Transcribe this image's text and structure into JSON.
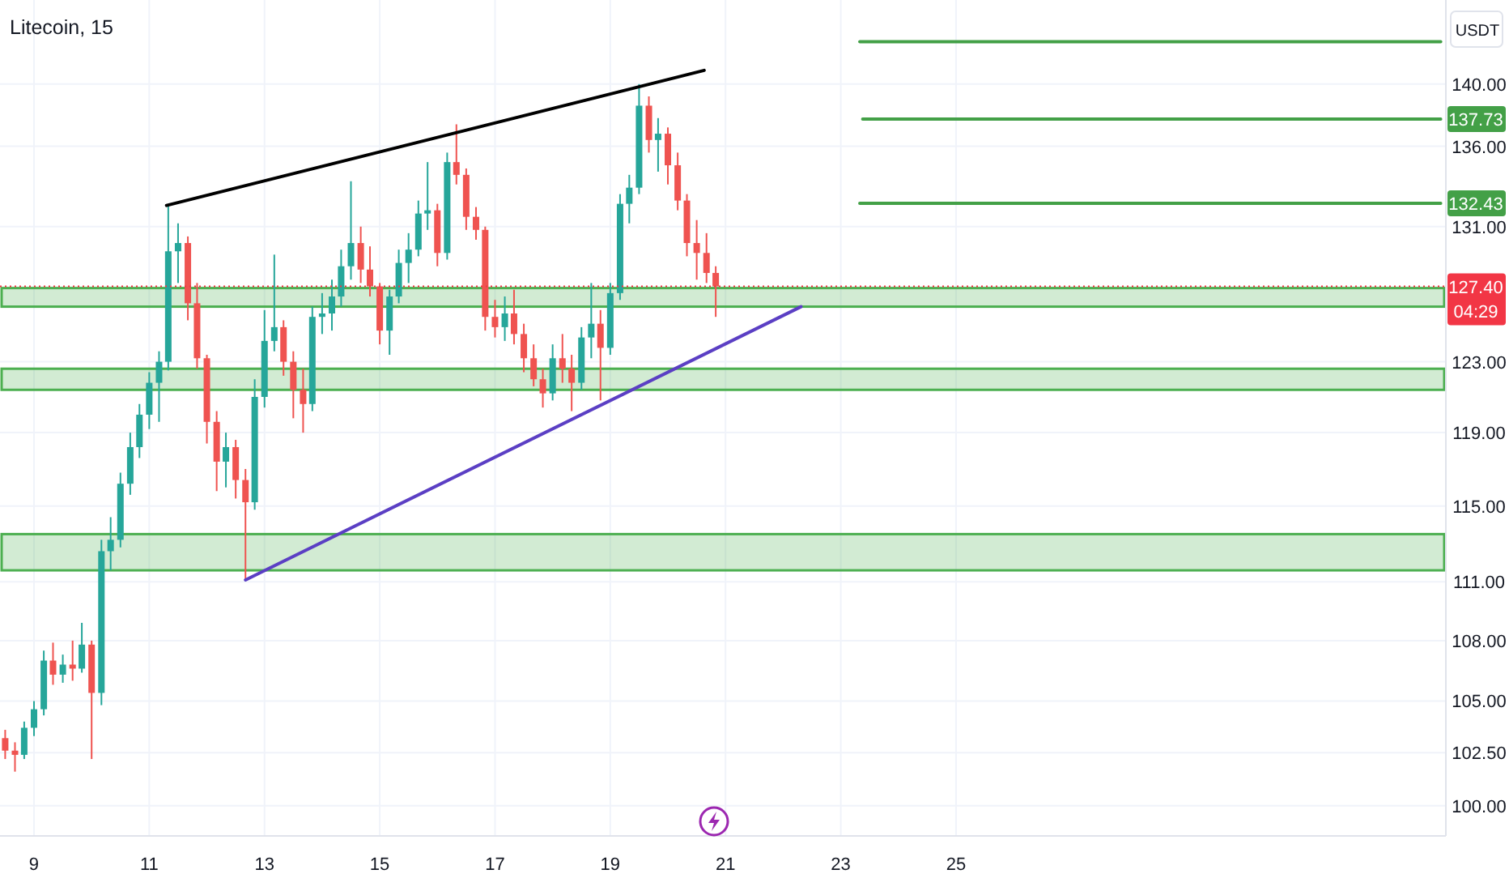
{
  "chart_data": {
    "type": "candlestick",
    "title": "Litecoin, 15",
    "ylabel": "USDT",
    "log": "y",
    "grid": true,
    "xlim": [
      8.41,
      33.5
    ],
    "ylim": [
      98.6,
      145.6
    ],
    "xticks": [
      9,
      11,
      13,
      15,
      17,
      19,
      21,
      23,
      25
    ],
    "yticks": [
      {
        "value": 100,
        "label": "100.00"
      },
      {
        "value": 102.5,
        "label": "102.50"
      },
      {
        "value": 105,
        "label": "105.00"
      },
      {
        "value": 108,
        "label": "108.00"
      },
      {
        "value": 111,
        "label": "111.00"
      },
      {
        "value": 115,
        "label": "115.00"
      },
      {
        "value": 119,
        "label": "119.00"
      },
      {
        "value": 123,
        "label": "123.00"
      },
      {
        "value": 131,
        "label": "131.00"
      },
      {
        "value": 136,
        "label": "136.00"
      },
      {
        "value": 140,
        "label": "140.00"
      }
    ],
    "x": [
      8.5,
      8.67,
      8.83,
      9,
      9.17,
      9.33,
      9.5,
      9.67,
      9.83,
      10,
      10.17,
      10.33,
      10.5,
      10.67,
      10.83,
      11,
      11.17,
      11.33,
      11.5,
      11.67,
      11.83,
      12,
      12.17,
      12.33,
      12.5,
      12.67,
      12.83,
      13,
      13.17,
      13.33,
      13.5,
      13.67,
      13.83,
      14,
      14.17,
      14.33,
      14.5,
      14.67,
      14.83,
      15,
      15.17,
      15.33,
      15.5,
      15.67,
      15.83,
      16,
      16.17,
      16.33,
      16.5,
      16.67,
      16.83,
      17,
      17.17,
      17.33,
      17.5,
      17.67,
      17.83,
      18,
      18.17,
      18.33,
      18.5,
      18.67,
      18.83,
      19,
      19.17,
      19.33,
      19.5,
      19.67,
      19.83,
      20,
      20.17,
      20.33,
      20.5,
      20.67,
      20.83
    ],
    "ohlc": [
      [
        103.2,
        103.6,
        102.2,
        102.6
      ],
      [
        102.6,
        103.0,
        101.6,
        102.4
      ],
      [
        102.4,
        104.0,
        102.2,
        103.7
      ],
      [
        103.7,
        105.0,
        103.3,
        104.6
      ],
      [
        104.6,
        107.5,
        104.3,
        107.0
      ],
      [
        107.0,
        107.9,
        105.8,
        106.3
      ],
      [
        106.3,
        107.3,
        105.9,
        106.8
      ],
      [
        106.8,
        108.0,
        106.0,
        106.6
      ],
      [
        106.6,
        108.9,
        106.4,
        107.8
      ],
      [
        107.8,
        108.0,
        102.2,
        105.4
      ],
      [
        105.4,
        113.2,
        104.8,
        112.6
      ],
      [
        112.6,
        114.4,
        111.6,
        113.2
      ],
      [
        113.2,
        116.8,
        112.8,
        116.2
      ],
      [
        116.2,
        119.0,
        115.6,
        118.2
      ],
      [
        118.2,
        120.6,
        117.6,
        120.0
      ],
      [
        120.0,
        122.4,
        119.2,
        121.8
      ],
      [
        121.8,
        123.6,
        119.6,
        123.0
      ],
      [
        123.0,
        132.3,
        122.5,
        129.5
      ],
      [
        129.5,
        131.2,
        127.6,
        130.0
      ],
      [
        130.0,
        130.4,
        125.4,
        126.4
      ],
      [
        126.4,
        127.6,
        122.6,
        123.2
      ],
      [
        123.2,
        123.4,
        118.4,
        119.6
      ],
      [
        119.6,
        120.2,
        115.8,
        117.4
      ],
      [
        117.4,
        119.0,
        116.0,
        118.2
      ],
      [
        118.2,
        118.6,
        115.4,
        116.4
      ],
      [
        116.4,
        117.0,
        111.1,
        115.2
      ],
      [
        115.2,
        122.0,
        114.8,
        121.0
      ],
      [
        121.0,
        126.0,
        120.4,
        124.2
      ],
      [
        124.2,
        129.3,
        123.6,
        125.0
      ],
      [
        125.0,
        125.4,
        122.2,
        123.0
      ],
      [
        123.0,
        123.6,
        119.8,
        121.4
      ],
      [
        121.4,
        122.6,
        119.0,
        120.6
      ],
      [
        120.6,
        126.2,
        120.2,
        125.6
      ],
      [
        125.6,
        127.0,
        124.6,
        125.8
      ],
      [
        125.8,
        127.8,
        124.8,
        126.8
      ],
      [
        126.8,
        129.6,
        126.2,
        128.6
      ],
      [
        128.6,
        133.8,
        127.8,
        130.0
      ],
      [
        130.0,
        131.0,
        127.6,
        128.4
      ],
      [
        128.4,
        129.8,
        126.8,
        127.4
      ],
      [
        127.4,
        127.6,
        124.0,
        124.8
      ],
      [
        124.8,
        127.2,
        123.4,
        126.8
      ],
      [
        126.8,
        129.6,
        126.4,
        128.8
      ],
      [
        128.8,
        130.6,
        127.6,
        129.6
      ],
      [
        129.6,
        132.6,
        129.2,
        131.8
      ],
      [
        131.8,
        135.0,
        130.8,
        132.0
      ],
      [
        132.0,
        132.4,
        128.6,
        129.4
      ],
      [
        129.4,
        135.6,
        129.0,
        135.0
      ],
      [
        135.0,
        137.4,
        133.6,
        134.2
      ],
      [
        134.2,
        134.6,
        130.8,
        131.6
      ],
      [
        131.6,
        132.2,
        130.2,
        130.8
      ],
      [
        130.8,
        131.0,
        124.8,
        125.6
      ],
      [
        125.6,
        126.6,
        124.4,
        125.0
      ],
      [
        125.0,
        126.8,
        124.2,
        125.8
      ],
      [
        125.8,
        127.2,
        124.0,
        124.6
      ],
      [
        124.6,
        125.2,
        122.4,
        123.2
      ],
      [
        123.2,
        124.0,
        121.6,
        122.0
      ],
      [
        122.0,
        122.6,
        120.4,
        121.2
      ],
      [
        121.2,
        124.0,
        120.8,
        123.2
      ],
      [
        123.2,
        124.6,
        121.8,
        122.6
      ],
      [
        122.6,
        123.4,
        120.2,
        121.8
      ],
      [
        121.8,
        125.0,
        121.4,
        124.4
      ],
      [
        124.4,
        127.6,
        123.2,
        125.2
      ],
      [
        125.2,
        126.0,
        120.8,
        123.8
      ],
      [
        123.8,
        127.6,
        123.4,
        127.0
      ],
      [
        127.0,
        133.0,
        126.6,
        132.4
      ],
      [
        132.4,
        134.2,
        131.2,
        133.4
      ],
      [
        133.4,
        140.0,
        133.0,
        138.6
      ],
      [
        138.6,
        139.2,
        135.6,
        136.4
      ],
      [
        136.4,
        137.8,
        134.4,
        136.8
      ],
      [
        136.8,
        137.2,
        133.6,
        134.8
      ],
      [
        134.8,
        135.6,
        132.0,
        132.6
      ],
      [
        132.6,
        133.0,
        129.2,
        130.0
      ],
      [
        130.0,
        131.4,
        127.8,
        129.4
      ],
      [
        129.4,
        130.6,
        127.6,
        128.2
      ],
      [
        128.2,
        128.6,
        125.6,
        127.4
      ]
    ],
    "series": [
      {
        "type": "line",
        "color": "#000000",
        "x": [
          11.3,
          20.63
        ],
        "values": [
          132.3,
          140.9
        ]
      },
      {
        "type": "line",
        "color": "#5b3fc4",
        "x": [
          12.67,
          22.31
        ],
        "values": [
          111.1,
          126.2
        ]
      },
      {
        "type": "line",
        "color": "#43a047",
        "x": [
          23.33,
          33.41
        ],
        "values": [
          142.8,
          142.8
        ]
      },
      {
        "type": "line",
        "color": "#43a047",
        "x": [
          23.38,
          33.41
        ],
        "values": [
          137.73,
          137.73
        ],
        "value_labels": [
          null,
          "137.73"
        ]
      },
      {
        "type": "line",
        "color": "#43a047",
        "x": [
          23.33,
          33.41
        ],
        "values": [
          132.43,
          132.43
        ],
        "value_labels": [
          null,
          "132.43"
        ]
      }
    ],
    "bands": [
      {
        "axis": "y",
        "from": 126.2,
        "to": 127.3,
        "color": "#4caf50"
      },
      {
        "axis": "y",
        "from": 121.4,
        "to": 122.6,
        "color": "#4caf50"
      },
      {
        "axis": "y",
        "from": 111.6,
        "to": 113.5,
        "color": "#4caf50"
      }
    ],
    "ref_lines": [
      {
        "axis": "y",
        "value": 127.4,
        "label": "127.40\n04:29",
        "color": "#f23645",
        "line_style": "dotted"
      }
    ]
  }
}
